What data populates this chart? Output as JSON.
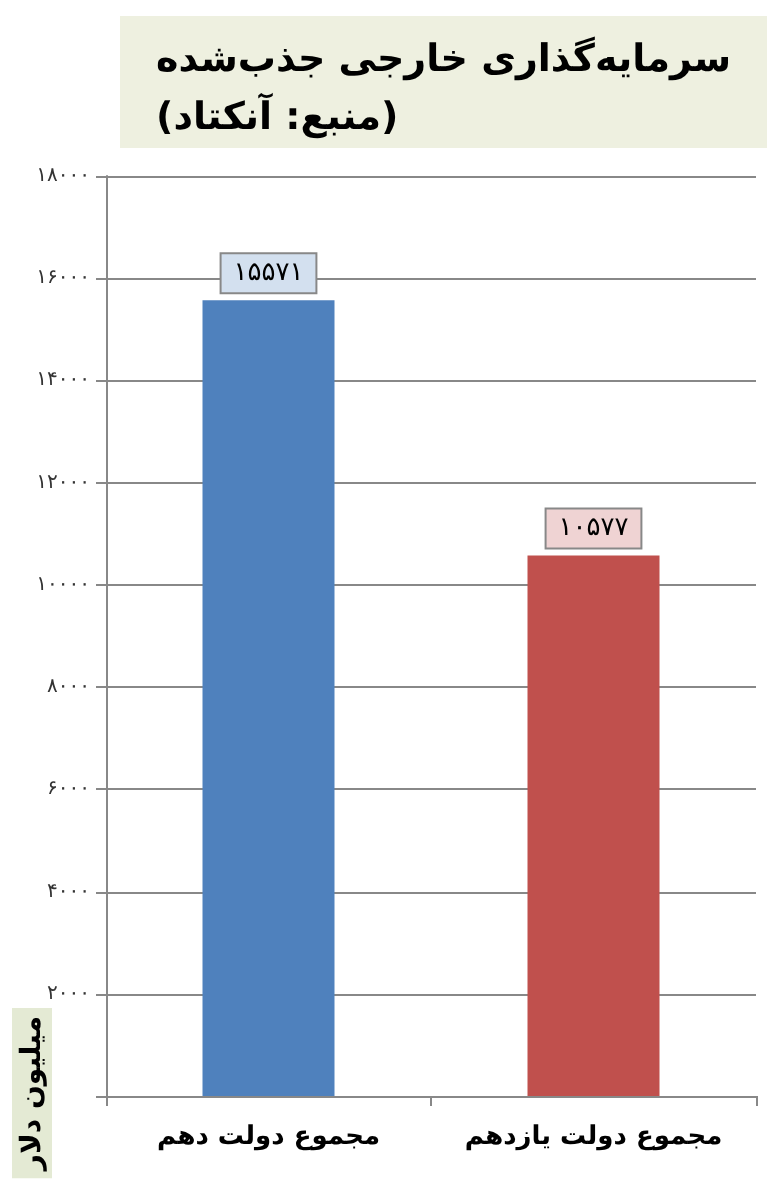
{
  "chart_data": {
    "type": "bar",
    "title": "سرمایه‌گذاری خارجی جذب‌شده",
    "subtitle": "(منبع: آنکتاد)",
    "ylabel": "میلیون دلار",
    "categories": [
      "مجموع دولت دهم",
      "مجموع دولت یازدهم"
    ],
    "values": [
      15571,
      10577
    ],
    "colors": [
      "#4f81bd",
      "#c0504d"
    ],
    "value_labels": [
      "۱۵۵۷۱",
      "۱۰۵۷۷"
    ],
    "ylim": [
      0,
      18000
    ],
    "yticks": [
      {
        "value": 0,
        "label": null
      },
      {
        "value": 2000,
        "label": "۲۰۰۰"
      },
      {
        "value": 4000,
        "label": "۴۰۰۰"
      },
      {
        "value": 6000,
        "label": "۶۰۰۰"
      },
      {
        "value": 8000,
        "label": "۸۰۰۰"
      },
      {
        "value": 10000,
        "label": "۱۰۰۰۰"
      },
      {
        "value": 12000,
        "label": "۱۲۰۰۰"
      },
      {
        "value": 14000,
        "label": "۱۴۰۰۰"
      },
      {
        "value": 16000,
        "label": "۱۶۰۰۰"
      },
      {
        "value": 18000,
        "label": "۱۸۰۰۰"
      }
    ],
    "grid": "y"
  }
}
